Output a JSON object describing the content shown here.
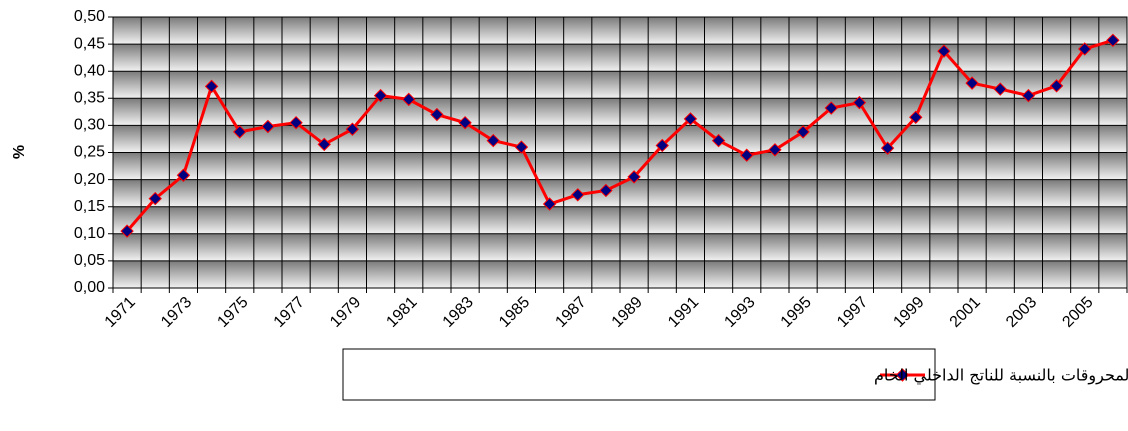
{
  "chart_data": {
    "type": "line",
    "y_label": "%",
    "categories": [
      "1971",
      null,
      "1973",
      null,
      "1975",
      null,
      "1977",
      null,
      "1979",
      null,
      "1981",
      null,
      "1983",
      null,
      "1985",
      null,
      "1987",
      null,
      "1989",
      null,
      "1991",
      null,
      "1993",
      null,
      "1995",
      null,
      "1997",
      null,
      "1999",
      null,
      "2001",
      null,
      "2003",
      null,
      "2005",
      null
    ],
    "series": [
      {
        "name": "نسبة الناتج الداخلي لفوع المحروقات بالنسبة للناتج الداخلي الخام",
        "color": "#ff0000",
        "marker_color": "#000080",
        "values": [
          0.105,
          0.165,
          0.208,
          0.372,
          0.288,
          0.298,
          0.305,
          0.265,
          0.293,
          0.355,
          0.348,
          0.32,
          0.305,
          0.272,
          0.26,
          0.155,
          0.172,
          0.18,
          0.205,
          0.263,
          0.312,
          0.272,
          0.245,
          0.255,
          0.288,
          0.332,
          0.342,
          0.258,
          0.315,
          0.437,
          0.378,
          0.367,
          0.355,
          0.373,
          0.441,
          0.457
        ]
      }
    ],
    "ylim": [
      0,
      0.5
    ],
    "yticks": [
      {
        "value": 0,
        "label": "0,00"
      },
      {
        "value": 0.05,
        "label": "0,05"
      },
      {
        "value": 0.1,
        "label": "0,10"
      },
      {
        "value": 0.15,
        "label": "0,15"
      },
      {
        "value": 0.2,
        "label": "0,20"
      },
      {
        "value": 0.25,
        "label": "0,25"
      },
      {
        "value": 0.3,
        "label": "0,30"
      },
      {
        "value": 0.35,
        "label": "0,35"
      },
      {
        "value": 0.4,
        "label": "0,40"
      },
      {
        "value": 0.45,
        "label": "0,45"
      },
      {
        "value": 0.5,
        "label": "0,50"
      }
    ],
    "grid": true,
    "legend": "bottom"
  }
}
